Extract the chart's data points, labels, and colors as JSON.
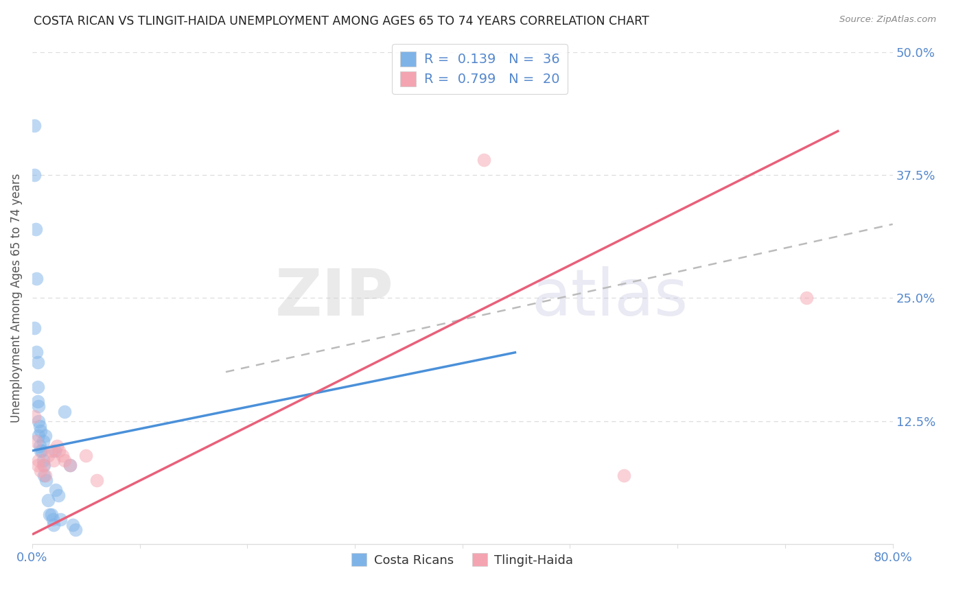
{
  "title": "COSTA RICAN VS TLINGIT-HAIDA UNEMPLOYMENT AMONG AGES 65 TO 74 YEARS CORRELATION CHART",
  "source": "Source: ZipAtlas.com",
  "ylabel": "Unemployment Among Ages 65 to 74 years",
  "xlim": [
    0.0,
    0.8
  ],
  "ylim": [
    0.0,
    0.5
  ],
  "yticks_right": [
    0.0,
    0.125,
    0.25,
    0.375,
    0.5
  ],
  "yticklabels_right": [
    "",
    "12.5%",
    "25.0%",
    "37.5%",
    "50.0%"
  ],
  "blue_color": "#7EB3E8",
  "pink_color": "#F4A4B0",
  "blue_line_color": "#4A90D9",
  "pink_line_color": "#E8607A",
  "gray_line_color": "#BBBBBB",
  "tick_color": "#5588CC",
  "title_color": "#222222",
  "axis_label_color": "#555555",
  "grid_color": "#DDDDDD",
  "legend_R1": "0.139",
  "legend_N1": "36",
  "legend_R2": "0.799",
  "legend_N2": "20",
  "costa_rican_x": [
    0.002,
    0.002,
    0.003,
    0.004,
    0.004,
    0.005,
    0.005,
    0.005,
    0.006,
    0.006,
    0.006,
    0.007,
    0.007,
    0.008,
    0.008,
    0.009,
    0.01,
    0.01,
    0.011,
    0.011,
    0.012,
    0.013,
    0.015,
    0.016,
    0.018,
    0.019,
    0.02,
    0.021,
    0.022,
    0.024,
    0.026,
    0.03,
    0.035,
    0.038,
    0.04,
    0.002
  ],
  "costa_rican_y": [
    0.425,
    0.375,
    0.32,
    0.27,
    0.195,
    0.185,
    0.16,
    0.145,
    0.14,
    0.125,
    0.11,
    0.12,
    0.1,
    0.115,
    0.095,
    0.095,
    0.105,
    0.085,
    0.08,
    0.07,
    0.11,
    0.065,
    0.045,
    0.03,
    0.03,
    0.025,
    0.02,
    0.095,
    0.055,
    0.05,
    0.025,
    0.135,
    0.08,
    0.02,
    0.015,
    0.22
  ],
  "tlingit_x": [
    0.002,
    0.003,
    0.005,
    0.006,
    0.008,
    0.01,
    0.012,
    0.015,
    0.018,
    0.02,
    0.023,
    0.025,
    0.028,
    0.03,
    0.035,
    0.05,
    0.06,
    0.42,
    0.55,
    0.72
  ],
  "tlingit_y": [
    0.13,
    0.105,
    0.08,
    0.085,
    0.075,
    0.08,
    0.07,
    0.09,
    0.095,
    0.085,
    0.1,
    0.095,
    0.09,
    0.085,
    0.08,
    0.09,
    0.065,
    0.39,
    0.07,
    0.25
  ],
  "blue_line_x": [
    0.0,
    0.45
  ],
  "blue_line_y": [
    0.095,
    0.195
  ],
  "pink_line_x": [
    0.0,
    0.75
  ],
  "pink_line_y": [
    0.01,
    0.42
  ],
  "gray_line_x": [
    0.18,
    0.8
  ],
  "gray_line_y": [
    0.175,
    0.325
  ],
  "watermark_zip": "ZIP",
  "watermark_atlas": "atlas"
}
